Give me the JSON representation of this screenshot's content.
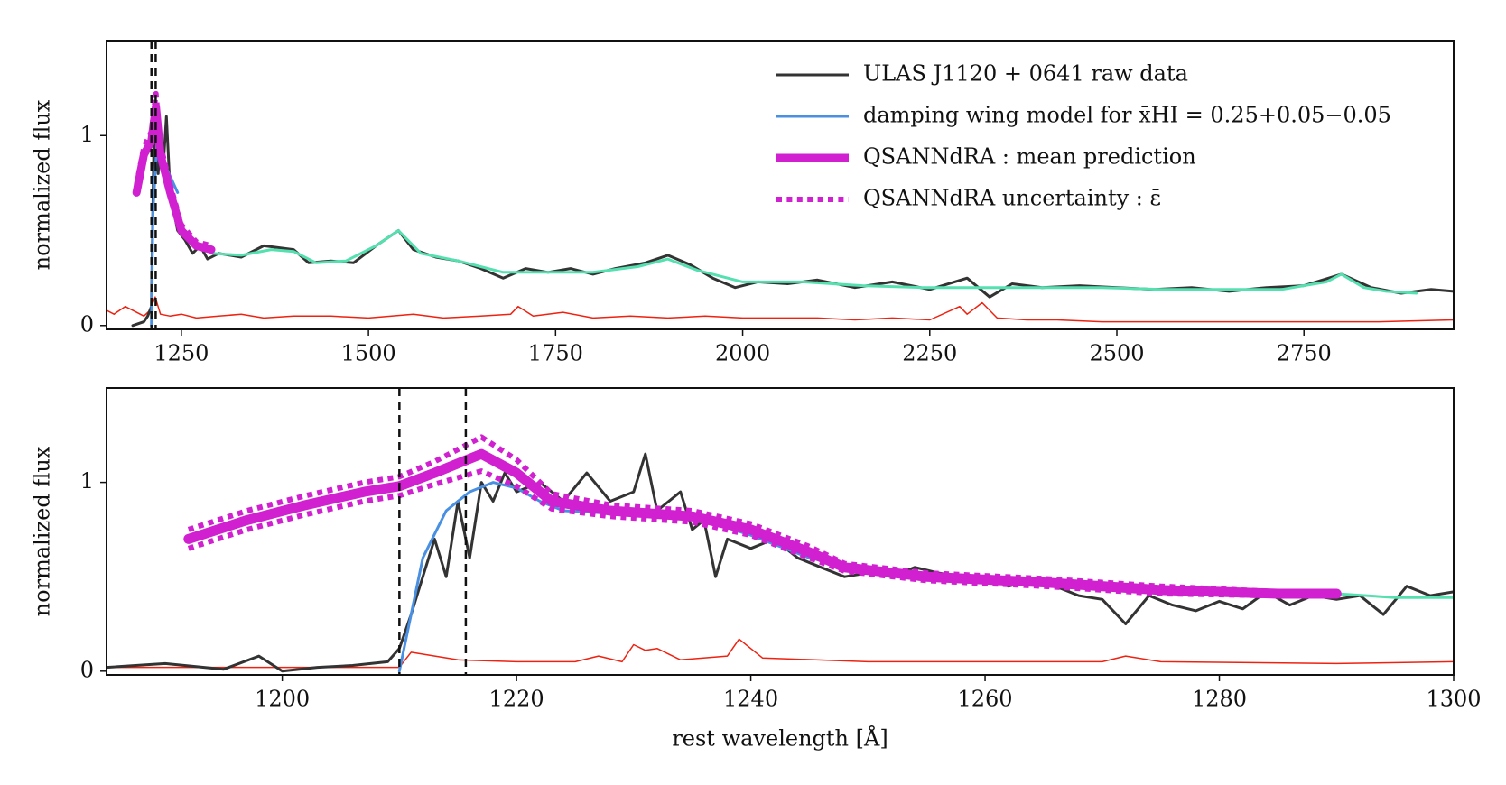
{
  "chart_data": [
    {
      "type": "line",
      "ylabel": "normalized flux",
      "xlim": [
        1150,
        2950
      ],
      "ylim": [
        -0.02,
        1.5
      ],
      "xticks": [
        1250,
        1500,
        1750,
        2000,
        2250,
        2500,
        2750
      ],
      "yticks": [
        0,
        1
      ],
      "legend": "upper right",
      "vlines": [
        1210,
        1215.67
      ],
      "series": [
        {
          "color": "#ee2211",
          "linewidth": 1.5,
          "x": [
            1150,
            1160,
            1175,
            1190,
            1200,
            1208,
            1215,
            1222,
            1235,
            1250,
            1270,
            1300,
            1330,
            1360,
            1400,
            1450,
            1500,
            1560,
            1600,
            1650,
            1690,
            1700,
            1720,
            1760,
            1800,
            1850,
            1900,
            1950,
            2000,
            2050,
            2100,
            2150,
            2200,
            2250,
            2290,
            2300,
            2320,
            2340,
            2380,
            2420,
            2480,
            2550,
            2620,
            2700,
            2780,
            2850,
            2950
          ],
          "values": [
            0.08,
            0.06,
            0.1,
            0.07,
            0.05,
            0.08,
            0.15,
            0.06,
            0.05,
            0.06,
            0.04,
            0.05,
            0.06,
            0.04,
            0.05,
            0.05,
            0.04,
            0.06,
            0.04,
            0.05,
            0.06,
            0.1,
            0.05,
            0.07,
            0.04,
            0.05,
            0.04,
            0.05,
            0.04,
            0.04,
            0.04,
            0.03,
            0.04,
            0.03,
            0.1,
            0.06,
            0.12,
            0.04,
            0.03,
            0.03,
            0.02,
            0.02,
            0.02,
            0.02,
            0.02,
            0.02,
            0.03
          ]
        },
        {
          "name": "ULAS J1120 + 0641 raw data",
          "color": "#333333",
          "linewidth": 3,
          "x": [
            1185,
            1200,
            1205,
            1210,
            1213,
            1216,
            1219,
            1222,
            1226,
            1230,
            1235,
            1240,
            1245,
            1255,
            1265,
            1275,
            1285,
            1300,
            1330,
            1360,
            1400,
            1420,
            1450,
            1480,
            1510,
            1540,
            1560,
            1590,
            1620,
            1650,
            1680,
            1710,
            1740,
            1770,
            1800,
            1830,
            1870,
            1900,
            1930,
            1960,
            1990,
            2020,
            2060,
            2100,
            2150,
            2200,
            2250,
            2300,
            2330,
            2360,
            2400,
            2450,
            2500,
            2550,
            2600,
            2650,
            2700,
            2750,
            2800,
            2840,
            2880,
            2920,
            2950
          ],
          "values": [
            0.0,
            0.02,
            0.05,
            0.1,
            0.9,
            1.1,
            0.8,
            1.0,
            0.85,
            1.1,
            0.7,
            0.6,
            0.5,
            0.45,
            0.38,
            0.42,
            0.35,
            0.38,
            0.36,
            0.42,
            0.4,
            0.33,
            0.34,
            0.33,
            0.42,
            0.5,
            0.4,
            0.36,
            0.34,
            0.3,
            0.25,
            0.3,
            0.28,
            0.3,
            0.27,
            0.3,
            0.33,
            0.37,
            0.32,
            0.25,
            0.2,
            0.23,
            0.22,
            0.24,
            0.2,
            0.23,
            0.19,
            0.25,
            0.15,
            0.22,
            0.2,
            0.21,
            0.2,
            0.19,
            0.2,
            0.18,
            0.2,
            0.21,
            0.27,
            0.2,
            0.17,
            0.19,
            0.18
          ]
        },
        {
          "color": "#55e0b0",
          "linewidth": 3,
          "x": [
            1290,
            1330,
            1370,
            1400,
            1430,
            1470,
            1510,
            1540,
            1570,
            1620,
            1680,
            1740,
            1800,
            1860,
            1900,
            1940,
            2000,
            2080,
            2160,
            2240,
            2320,
            2400,
            2480,
            2560,
            2640,
            2720,
            2780,
            2800,
            2830,
            2860,
            2900
          ],
          "values": [
            0.38,
            0.37,
            0.4,
            0.39,
            0.33,
            0.34,
            0.42,
            0.5,
            0.38,
            0.34,
            0.28,
            0.28,
            0.28,
            0.31,
            0.35,
            0.29,
            0.23,
            0.23,
            0.21,
            0.2,
            0.2,
            0.2,
            0.2,
            0.19,
            0.19,
            0.19,
            0.23,
            0.27,
            0.2,
            0.18,
            0.17
          ]
        },
        {
          "name": "damping wing model for x̄HI = 0.25+0.05−0.05",
          "color": "#4a90e2",
          "linewidth": 3,
          "x": [
            1210,
            1212,
            1218,
            1230,
            1245
          ],
          "values": [
            0.0,
            0.6,
            1.0,
            0.83,
            0.7
          ]
        },
        {
          "name": "QSANNdRA :  mean prediction",
          "color": "#d020d0",
          "linewidth": 9,
          "x": [
            1190,
            1200,
            1210,
            1216,
            1222,
            1235,
            1250,
            1270,
            1290
          ],
          "values": [
            0.7,
            0.9,
            0.97,
            1.15,
            0.9,
            0.7,
            0.5,
            0.42,
            0.4
          ]
        },
        {
          "name": "QSANNdRA uncertainty : ε̄",
          "color": "#d020d0",
          "linewidth": 6,
          "style": "dotted",
          "x": [
            1190,
            1200,
            1210,
            1216,
            1222,
            1235,
            1250,
            1270,
            1290
          ],
          "values": [
            0.74,
            0.94,
            1.02,
            1.22,
            0.95,
            0.74,
            0.53,
            0.44,
            0.42
          ]
        }
      ]
    },
    {
      "type": "line",
      "ylabel": "normalized flux",
      "xlabel": "rest wavelength [Å]",
      "xlim": [
        1185,
        1300
      ],
      "ylim": [
        -0.02,
        1.5
      ],
      "xticks": [
        1200,
        1220,
        1240,
        1260,
        1280,
        1300
      ],
      "yticks": [
        0,
        1
      ],
      "vlines": [
        1210,
        1215.67
      ],
      "series": [
        {
          "color": "#ee2211",
          "linewidth": 1.5,
          "x": [
            1185,
            1200,
            1210,
            1211,
            1215,
            1220,
            1225,
            1227,
            1229,
            1230,
            1231,
            1232,
            1234,
            1238,
            1239,
            1241,
            1250,
            1260,
            1270,
            1272,
            1275,
            1290,
            1300
          ],
          "values": [
            0.02,
            0.02,
            0.02,
            0.1,
            0.06,
            0.05,
            0.05,
            0.08,
            0.05,
            0.14,
            0.11,
            0.12,
            0.06,
            0.08,
            0.17,
            0.07,
            0.05,
            0.05,
            0.05,
            0.08,
            0.05,
            0.04,
            0.05
          ]
        },
        {
          "color": "#333333",
          "linewidth": 3,
          "x": [
            1185,
            1190,
            1195,
            1198,
            1200,
            1203,
            1206,
            1209,
            1210,
            1211,
            1212,
            1213,
            1214,
            1215,
            1216,
            1217,
            1218,
            1219,
            1220,
            1222,
            1224,
            1226,
            1228,
            1230,
            1231,
            1232,
            1234,
            1235,
            1236,
            1237,
            1238,
            1240,
            1242,
            1244,
            1246,
            1248,
            1250,
            1252,
            1254,
            1256,
            1258,
            1260,
            1262,
            1264,
            1266,
            1268,
            1270,
            1272,
            1274,
            1276,
            1278,
            1280,
            1282,
            1284,
            1286,
            1288,
            1290,
            1292,
            1294,
            1296,
            1298,
            1300
          ],
          "values": [
            0.02,
            0.04,
            0.01,
            0.08,
            0.0,
            0.02,
            0.03,
            0.05,
            0.12,
            0.3,
            0.5,
            0.7,
            0.5,
            0.9,
            0.6,
            1.0,
            0.9,
            1.05,
            0.95,
            1.0,
            0.9,
            1.05,
            0.9,
            0.95,
            1.15,
            0.85,
            0.95,
            0.75,
            0.8,
            0.5,
            0.7,
            0.65,
            0.7,
            0.6,
            0.55,
            0.5,
            0.52,
            0.5,
            0.55,
            0.52,
            0.5,
            0.5,
            0.45,
            0.48,
            0.45,
            0.4,
            0.38,
            0.25,
            0.4,
            0.35,
            0.32,
            0.37,
            0.33,
            0.42,
            0.35,
            0.4,
            0.38,
            0.4,
            0.3,
            0.45,
            0.4,
            0.42
          ]
        },
        {
          "color": "#55e0b0",
          "linewidth": 3,
          "x": [
            1290,
            1295,
            1300
          ],
          "values": [
            0.41,
            0.39,
            0.39
          ]
        },
        {
          "color": "#4a90e2",
          "linewidth": 3,
          "x": [
            1210,
            1211,
            1212,
            1214,
            1216,
            1218,
            1220,
            1222,
            1224,
            1230,
            1236,
            1240,
            1245,
            1250,
            1260,
            1270,
            1280,
            1290
          ],
          "values": [
            0.0,
            0.3,
            0.6,
            0.85,
            0.95,
            1.0,
            0.97,
            0.9,
            0.85,
            0.83,
            0.8,
            0.72,
            0.6,
            0.53,
            0.5,
            0.45,
            0.41,
            0.4
          ]
        },
        {
          "color": "#d020d0",
          "linewidth": 11,
          "x": [
            1192,
            1197,
            1202,
            1207,
            1210,
            1213,
            1217,
            1220,
            1223,
            1228,
            1235,
            1240,
            1245,
            1248,
            1255,
            1265,
            1275,
            1285,
            1290
          ],
          "values": [
            0.7,
            0.8,
            0.88,
            0.95,
            0.98,
            1.05,
            1.15,
            1.05,
            0.9,
            0.85,
            0.82,
            0.75,
            0.63,
            0.55,
            0.5,
            0.47,
            0.43,
            0.41,
            0.41
          ]
        },
        {
          "color": "#d020d0",
          "linewidth": 6,
          "style": "dotted",
          "x": [
            1192,
            1197,
            1202,
            1207,
            1210,
            1213,
            1217,
            1220,
            1223,
            1228,
            1235,
            1240,
            1245,
            1248,
            1255,
            1265,
            1275,
            1285,
            1290
          ],
          "values": [
            0.75,
            0.85,
            0.93,
            1.0,
            1.03,
            1.11,
            1.24,
            1.12,
            0.94,
            0.88,
            0.85,
            0.78,
            0.66,
            0.57,
            0.52,
            0.49,
            0.45,
            0.42,
            0.42
          ]
        },
        {
          "color": "#d020d0",
          "linewidth": 6,
          "style": "dotted",
          "x": [
            1192,
            1197,
            1202,
            1207,
            1210,
            1213,
            1217,
            1220,
            1223,
            1228,
            1235,
            1240,
            1245,
            1248,
            1255,
            1265,
            1275,
            1285,
            1290
          ],
          "values": [
            0.65,
            0.75,
            0.83,
            0.9,
            0.93,
            0.99,
            1.06,
            0.98,
            0.86,
            0.82,
            0.79,
            0.72,
            0.6,
            0.53,
            0.48,
            0.45,
            0.41,
            0.4,
            0.4
          ]
        }
      ]
    }
  ]
}
